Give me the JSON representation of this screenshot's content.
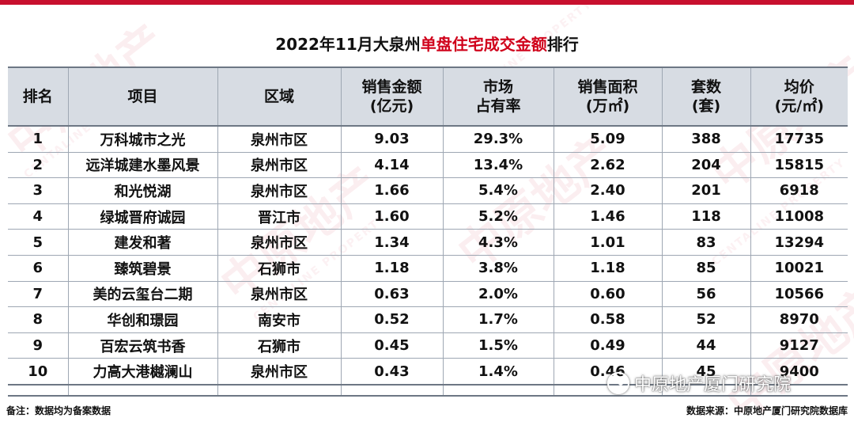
{
  "title_prefix": "2022年11月大泉州",
  "title_highlight": "单盘住宅成交金额",
  "title_suffix": "排行",
  "headers": [
    [
      "排名"
    ],
    [
      "项目"
    ],
    [
      "区域"
    ],
    [
      "销售金额",
      "(亿元)"
    ],
    [
      "市场",
      "占有率"
    ],
    [
      "销售面积",
      "(万㎡)"
    ],
    [
      "套数",
      "(套)"
    ],
    [
      "均价",
      "(元/㎡)"
    ]
  ],
  "rows": [
    [
      "1",
      "万科城市之光",
      "泉州市区",
      "9.03",
      "29.3%",
      "5.09",
      "388",
      "17735"
    ],
    [
      "2",
      "远洋城建水墨风景",
      "泉州市区",
      "4.14",
      "13.4%",
      "2.62",
      "204",
      "15815"
    ],
    [
      "3",
      "和光悦湖",
      "泉州市区",
      "1.66",
      "5.4%",
      "2.40",
      "201",
      "6918"
    ],
    [
      "4",
      "绿城晋府诚园",
      "晋江市",
      "1.60",
      "5.2%",
      "1.46",
      "118",
      "11008"
    ],
    [
      "5",
      "建发和著",
      "泉州市区",
      "1.34",
      "4.3%",
      "1.01",
      "83",
      "13294"
    ],
    [
      "6",
      "臻筑碧景",
      "石狮市",
      "1.18",
      "3.8%",
      "1.18",
      "85",
      "10021"
    ],
    [
      "7",
      "美的云玺台二期",
      "泉州市区",
      "0.63",
      "2.0%",
      "0.60",
      "56",
      "10566"
    ],
    [
      "8",
      "华创和璟园",
      "南安市",
      "0.52",
      "1.7%",
      "0.58",
      "52",
      "8970"
    ],
    [
      "9",
      "百宏云筑书香",
      "石狮市",
      "0.45",
      "1.5%",
      "0.49",
      "44",
      "9127"
    ],
    [
      "10",
      "力高大港樾澜山",
      "泉州市区",
      "0.43",
      "1.4%",
      "0.46",
      "45",
      "9400"
    ]
  ],
  "note": "备注：数据均为备案数据",
  "source": "数据来源：中原地产厦门研究院数据库",
  "brand": "中原地产厦门研究院",
  "watermark": "中原地产",
  "watermark_en": "CENTALINE PROPERTY",
  "colors": {
    "accent": "#c8102e",
    "header_bg": "#d7dce3",
    "border": "#9ea7b3"
  }
}
